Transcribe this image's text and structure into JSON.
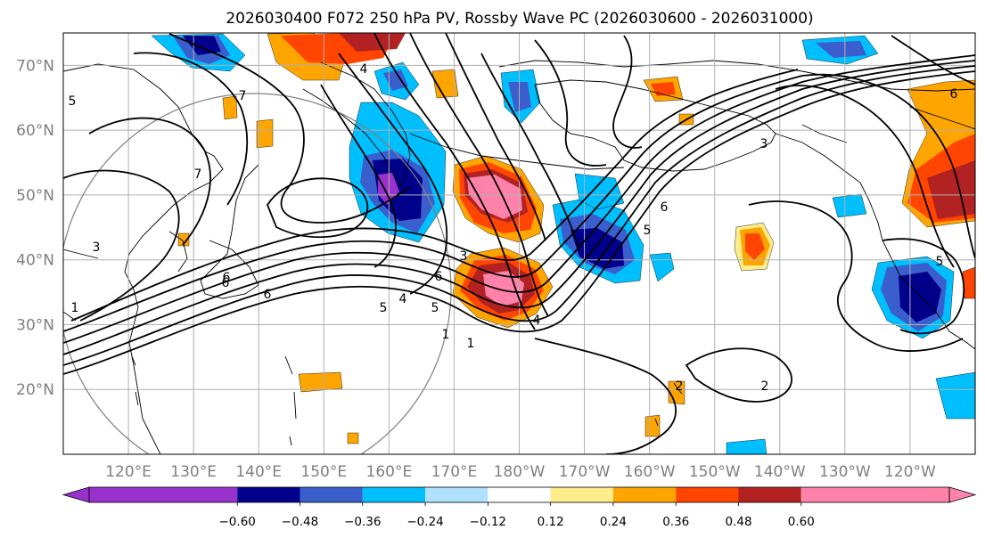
{
  "title": "2026030400 F072 250 hPa PV, Rossby Wave PC (2026030600 - 2026031000)",
  "lat_labels": [
    "70°N",
    "60°N",
    "50°N",
    "40°N",
    "30°N",
    "20°N"
  ],
  "lat_values": [
    70,
    60,
    50,
    40,
    30,
    20
  ],
  "lon_labels": [
    "120°E",
    "130°E",
    "140°E",
    "150°E",
    "160°E",
    "170°E",
    "180°W",
    "170°W",
    "160°W",
    "150°W",
    "140°W",
    "130°W",
    "120°W"
  ],
  "lon_values": [
    120,
    130,
    140,
    150,
    160,
    170,
    180,
    190,
    200,
    210,
    220,
    230,
    240
  ],
  "map_extent": {
    "lon_min": 110,
    "lon_max": 250,
    "lat_min": 10,
    "lat_max": 75
  },
  "colorbar": {
    "tick_labels": [
      "−0.60",
      "−0.48",
      "−0.36",
      "−0.24",
      "−0.12",
      "0.12",
      "0.24",
      "0.36",
      "0.48",
      "0.60"
    ],
    "colors": [
      "#9932cc",
      "#00008b",
      "#3a5fcd",
      "#00bfff",
      "#b0e2ff",
      "#ffffff",
      "#ffec8b",
      "#ffa500",
      "#ff4500",
      "#b22222",
      "#ff82ab"
    ]
  },
  "contour_labels": [
    "1",
    "3",
    "7",
    "7",
    "4",
    "5",
    "6",
    "3",
    "5",
    "4",
    "6",
    "5",
    "6",
    "3",
    "6",
    "5",
    "1",
    "4",
    "2",
    "2",
    "6",
    "6",
    "5",
    "1"
  ],
  "colors": {
    "coast": "#000000",
    "grid": "#b0b0b0",
    "axis_labels": "#7f7f7f",
    "contour": "#000000",
    "circle": "#808080"
  }
}
